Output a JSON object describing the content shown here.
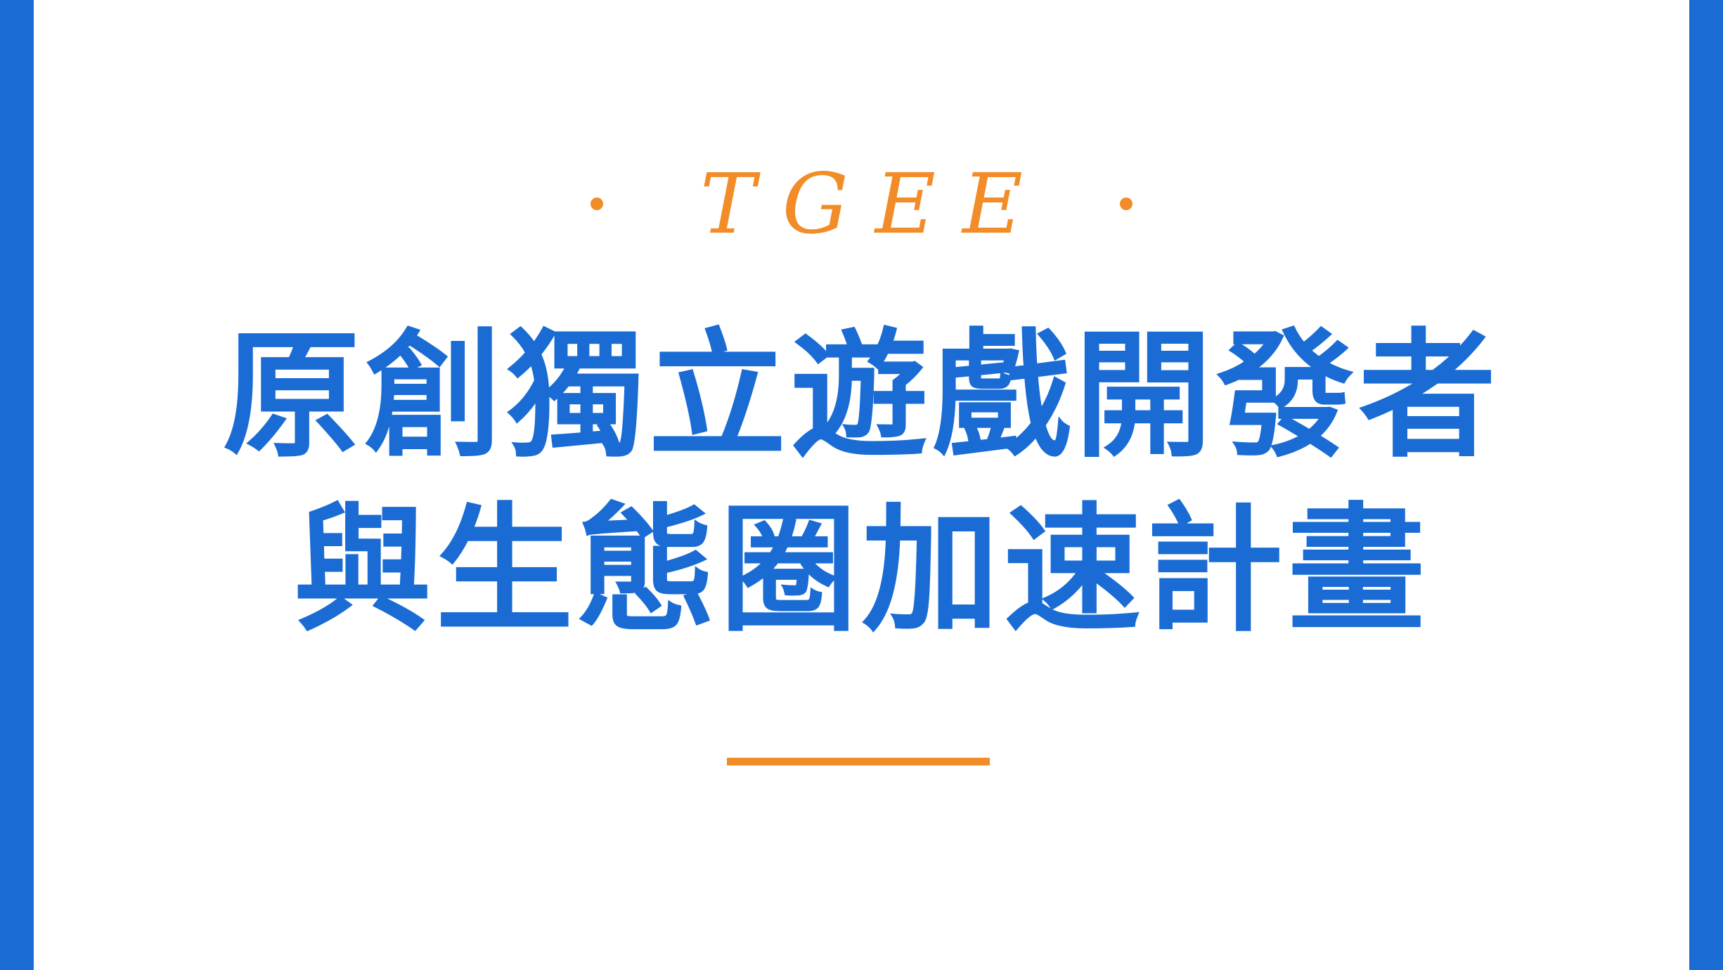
{
  "kicker": {
    "text": "TGEE",
    "color": "#F28C28"
  },
  "title": {
    "line1": "原創獨立遊戲開發者",
    "line2": "與生態圈加速計畫",
    "color": "#1A6CD4"
  },
  "frame": {
    "bar_color": "#1A6CD4",
    "background": "#FFFFFF"
  }
}
